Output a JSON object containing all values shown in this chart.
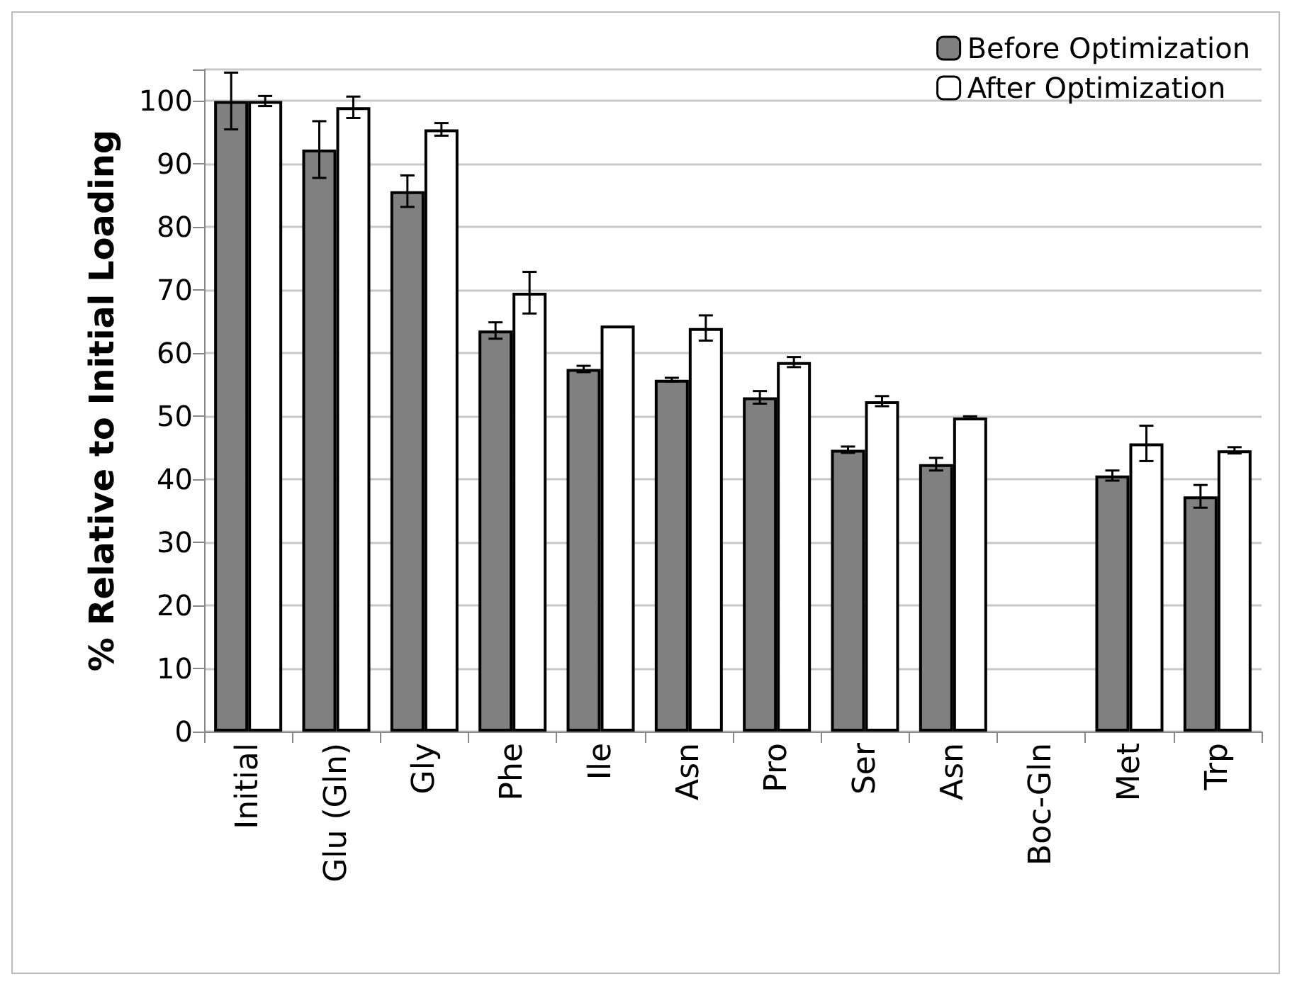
{
  "chart_data": {
    "type": "bar",
    "ylabel": "% Relative to Initial Loading",
    "categories": [
      "Initial",
      "Glu (Gln)",
      "Gly",
      "Phe",
      "Ile",
      "Asn",
      "Pro",
      "Ser",
      "Asn",
      "Boc-Gln",
      "Met",
      "Trp"
    ],
    "series": [
      {
        "name": "Before Optimization",
        "color": "#808080",
        "values": [
          100,
          92.3,
          85.7,
          63.6,
          57.5,
          55.8,
          53,
          44.7,
          42.4,
          0,
          40.6,
          37.3
        ],
        "errors": [
          4.5,
          4.5,
          2.5,
          1.3,
          0.5,
          0.3,
          1,
          0.5,
          1,
          null,
          0.8,
          1.8
        ]
      },
      {
        "name": "After Optimization",
        "color": "#ffffff",
        "values": [
          100,
          99,
          95.5,
          69.6,
          64.4,
          64,
          58.6,
          52.4,
          49.8,
          0,
          45.7,
          44.6
        ],
        "errors": [
          0.8,
          1.7,
          1,
          3.3,
          null,
          2,
          0.8,
          0.8,
          0.2,
          null,
          2.8,
          0.5
        ]
      }
    ],
    "ylim": [
      0,
      105
    ],
    "yticks": [
      0,
      10,
      20,
      30,
      40,
      50,
      60,
      70,
      80,
      90,
      100,
      {
        "value": 105,
        "label": null
      }
    ],
    "grid": "y",
    "legend": "top right"
  }
}
